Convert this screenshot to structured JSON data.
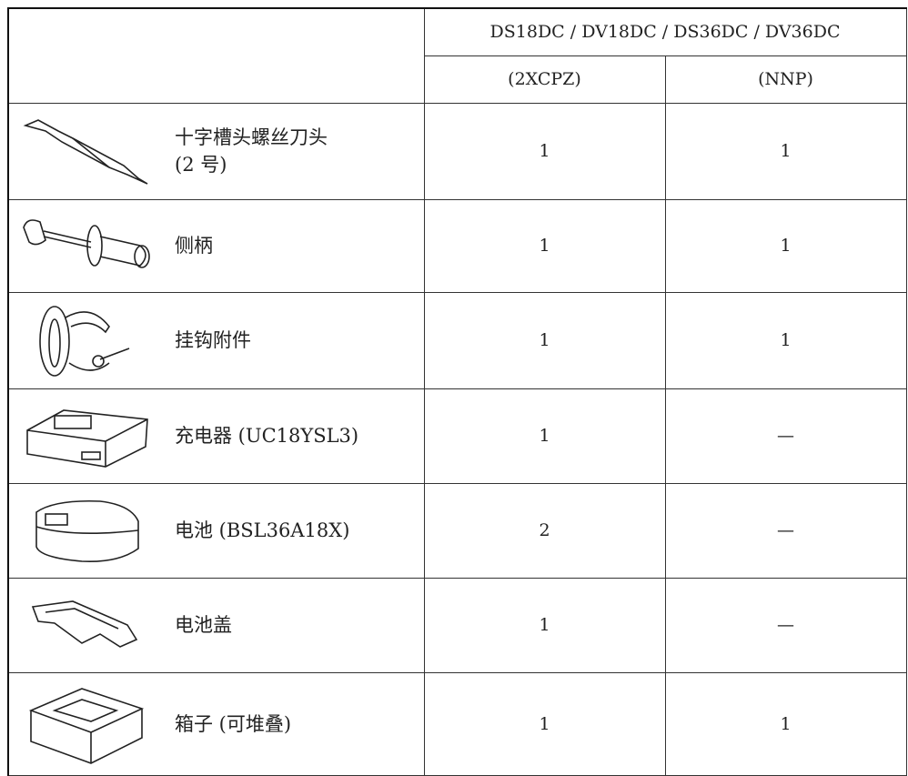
{
  "table": {
    "group_header": "DS18DC / DV18DC / DS36DC / DV36DC",
    "columns": [
      "(2XCPZ)",
      "(NNP)"
    ],
    "rows": [
      {
        "name": "十字槽头螺丝刀头\n(2 号)",
        "values": [
          1,
          1
        ]
      },
      {
        "name": "侧柄",
        "values": [
          1,
          1
        ]
      },
      {
        "name": "挂钩附件",
        "values": [
          1,
          1
        ]
      },
      {
        "name": "充电器 (UC18YSL3)",
        "values": [
          1,
          "—"
        ]
      },
      {
        "name": "电池 (BSL36A18X)",
        "values": [
          2,
          "—"
        ]
      },
      {
        "name": "电池盖",
        "values": [
          1,
          "—"
        ]
      },
      {
        "name": "箱子 (可堆叠)",
        "values": [
          1,
          1
        ]
      }
    ]
  }
}
